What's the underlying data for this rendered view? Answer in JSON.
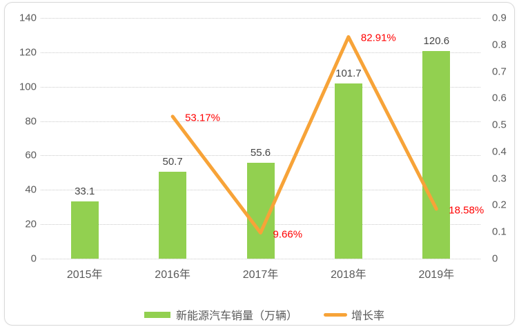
{
  "chart_data": {
    "type": "combo",
    "categories": [
      "2015年",
      "2016年",
      "2017年",
      "2018年",
      "2019年"
    ],
    "series": [
      {
        "name": "新能源汽车销量（万辆）",
        "type": "bar",
        "axis": "left",
        "color": "#92d050",
        "values": [
          33.1,
          50.7,
          55.6,
          101.7,
          120.6
        ],
        "labels": [
          "33.1",
          "50.7",
          "55.6",
          "101.7",
          "120.6"
        ]
      },
      {
        "name": "增长率",
        "type": "line",
        "axis": "right",
        "color": "#f7a338",
        "values": [
          null,
          0.5317,
          0.0966,
          0.8291,
          0.1858
        ],
        "labels": [
          null,
          "53.17%",
          "9.66%",
          "82.91%",
          "18.58%"
        ]
      }
    ],
    "left_axis": {
      "min": 0,
      "max": 140,
      "step": 20,
      "ticks": [
        "0",
        "20",
        "40",
        "60",
        "80",
        "100",
        "120",
        "140"
      ]
    },
    "right_axis": {
      "min": 0,
      "max": 0.9,
      "step": 0.1,
      "ticks": [
        "0",
        "0.1",
        "0.2",
        "0.3",
        "0.4",
        "0.5",
        "0.6",
        "0.7",
        "0.8",
        "0.9"
      ]
    },
    "grid": true,
    "legend_position": "bottom",
    "data_label_color": "#454545",
    "line_label_color": "#ff0000",
    "axis_text_color": "#595959",
    "gridline_color": "#c9c9c9"
  }
}
